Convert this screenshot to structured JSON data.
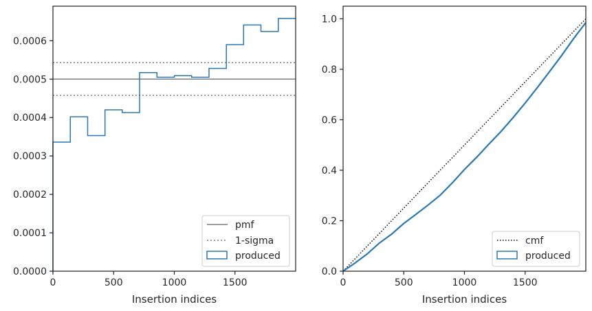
{
  "colors": {
    "produced": "#2878b5",
    "reference": "#7f7f7f",
    "cmf_line": "#000000",
    "axes": "#262626",
    "legend_border": "#cccccc"
  },
  "chart_data": [
    {
      "type": "line",
      "xlabel": "Insertion indices",
      "ylabel": "",
      "xlim": [
        0,
        2000
      ],
      "ylim": [
        0,
        0.00069
      ],
      "x_ticks": [
        0,
        500,
        1000,
        1500
      ],
      "x_tick_labels": [
        "0",
        "500",
        "1000",
        "1500"
      ],
      "y_ticks": [
        0,
        0.0001,
        0.0002,
        0.0003,
        0.0004,
        0.0005,
        0.0006
      ],
      "y_tick_labels": [
        "0.0000",
        "0.0001",
        "0.0002",
        "0.0003",
        "0.0004",
        "0.0005",
        "0.0006"
      ],
      "legend_position": "lower right",
      "legend": [
        "pmf",
        "1-sigma",
        "produced"
      ],
      "reference_lines": {
        "pmf": 0.0005,
        "sigma_upper": 0.000543,
        "sigma_lower": 0.000458
      },
      "series": [
        {
          "name": "produced",
          "style": "step",
          "bin_edges": [
            0,
            143,
            286,
            429,
            571,
            714,
            857,
            1000,
            1143,
            1286,
            1429,
            1571,
            1714,
            1857,
            2000
          ],
          "values": [
            0.000336,
            0.000402,
            0.000353,
            0.00042,
            0.000413,
            0.000517,
            0.000505,
            0.000509,
            0.000505,
            0.000528,
            0.00059,
            0.000641,
            0.000624,
            0.000658
          ]
        }
      ]
    },
    {
      "type": "line",
      "xlabel": "Insertion indices",
      "ylabel": "",
      "xlim": [
        0,
        2000
      ],
      "ylim": [
        0,
        1.05
      ],
      "x_ticks": [
        0,
        500,
        1000,
        1500
      ],
      "x_tick_labels": [
        "0",
        "500",
        "1000",
        "1500"
      ],
      "y_ticks": [
        0,
        0.2,
        0.4,
        0.6,
        0.8,
        1.0
      ],
      "y_tick_labels": [
        "0.0",
        "0.2",
        "0.4",
        "0.6",
        "0.8",
        "1.0"
      ],
      "legend_position": "lower right",
      "legend": [
        "cmf",
        "produced"
      ],
      "series": [
        {
          "name": "cmf",
          "x": [
            0,
            2000
          ],
          "y": [
            0,
            1.0
          ]
        },
        {
          "name": "produced",
          "x": [
            0,
            100,
            200,
            300,
            400,
            500,
            600,
            700,
            800,
            900,
            1000,
            1100,
            1200,
            1300,
            1400,
            1500,
            1600,
            1700,
            1800,
            1900,
            2000
          ],
          "y": [
            0,
            0.033,
            0.069,
            0.112,
            0.147,
            0.189,
            0.225,
            0.262,
            0.301,
            0.35,
            0.403,
            0.451,
            0.503,
            0.553,
            0.608,
            0.666,
            0.727,
            0.79,
            0.854,
            0.922,
            0.985
          ]
        }
      ]
    }
  ]
}
